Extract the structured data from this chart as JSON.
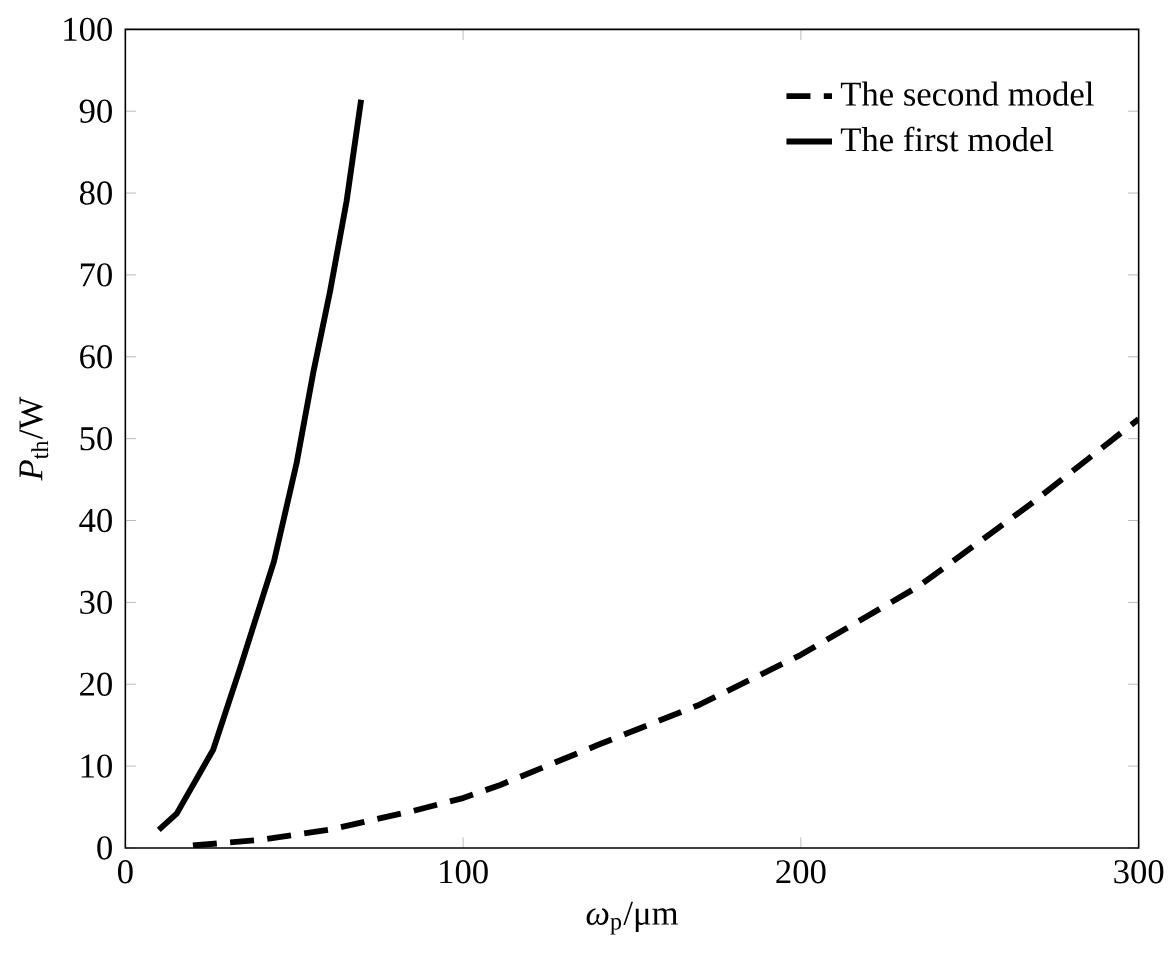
{
  "chart_data": {
    "type": "line",
    "xlabel": "*ω*$_{p}$/μm",
    "ylabel": "*P*$_{th}$/W",
    "xlim": [
      0,
      300
    ],
    "ylim": [
      0,
      100
    ],
    "xticks": [
      0,
      100,
      200,
      300
    ],
    "yticks": [
      0,
      10,
      20,
      30,
      40,
      50,
      60,
      70,
      80,
      90,
      100
    ],
    "grid": false,
    "legend": "top right",
    "marker": "none",
    "series": [
      {
        "name": "The second model",
        "color": "#000000",
        "line_style": "dashed",
        "x": [
          20,
          40,
          60,
          85,
          100,
          111,
          140,
          170,
          200,
          235,
          268,
          300
        ],
        "values": [
          0.3,
          1,
          2.2,
          4.5,
          6.1,
          7.7,
          12.6,
          17.5,
          23.6,
          32,
          42,
          52.4
        ]
      },
      {
        "name": "The first model",
        "color": "#000000",
        "line_style": "solid",
        "x": [
          9.9,
          15.2,
          26,
          34,
          44,
          50.7,
          55.6,
          60.6,
          65.5,
          69.8
        ],
        "values": [
          2.2,
          4.2,
          12,
          22,
          35,
          47,
          58,
          68,
          79,
          91.4
        ]
      }
    ]
  }
}
